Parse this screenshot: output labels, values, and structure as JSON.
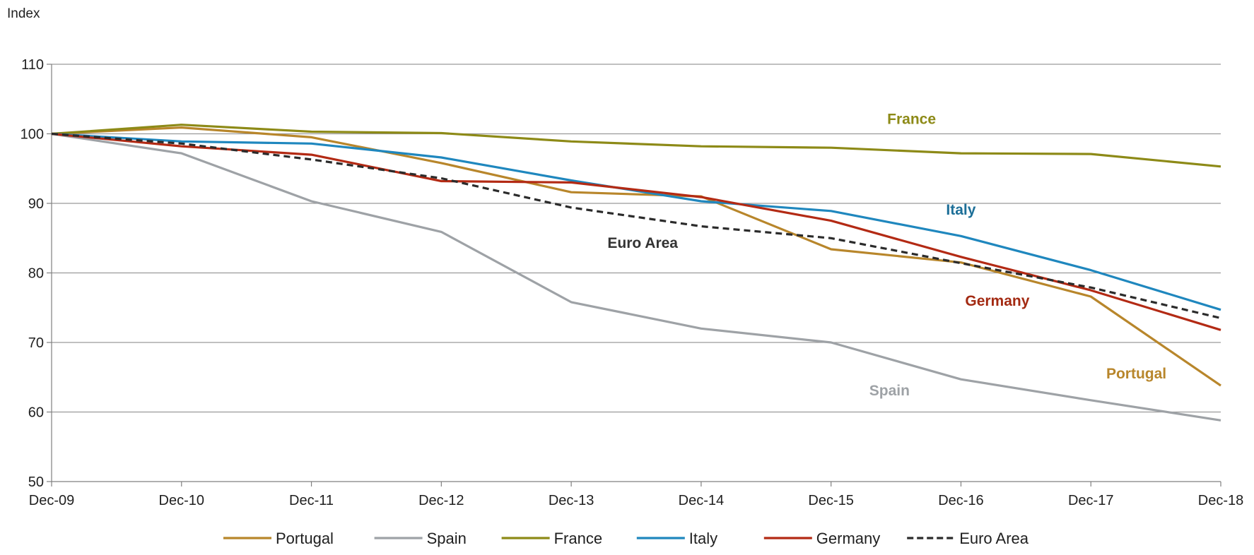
{
  "chart_data": {
    "type": "line",
    "title": "",
    "xlabel": "",
    "ylabel": "",
    "unit_label": "Index",
    "x": [
      "Dec-09",
      "Dec-10",
      "Dec-11",
      "Dec-12",
      "Dec-13",
      "Dec-14",
      "Dec-15",
      "Dec-16",
      "Dec-17",
      "Dec-18"
    ],
    "ylim": [
      50,
      110
    ],
    "yticks": [
      "50",
      "60",
      "70",
      "80",
      "90",
      "100",
      "110"
    ],
    "grid": true,
    "legend_position": "bottom",
    "series": [
      {
        "name": "Portugal",
        "color": "#b8862b",
        "dash": "solid",
        "values": [
          100,
          100.9,
          99.5,
          95.8,
          91.6,
          91.0,
          83.4,
          81.5,
          76.6,
          63.8
        ]
      },
      {
        "name": "Spain",
        "color": "#9ea2a6",
        "dash": "solid",
        "values": [
          100,
          97.2,
          90.3,
          85.9,
          75.8,
          72.0,
          70.0,
          64.7,
          61.7,
          58.8
        ]
      },
      {
        "name": "France",
        "color": "#8d8a17",
        "dash": "solid",
        "values": [
          100,
          101.3,
          100.3,
          100.1,
          98.9,
          98.2,
          98.0,
          97.2,
          97.1,
          95.3
        ]
      },
      {
        "name": "Italy",
        "color": "#1f87be",
        "dash": "solid",
        "values": [
          100,
          98.9,
          98.6,
          96.6,
          93.3,
          90.3,
          88.9,
          85.3,
          80.4,
          74.7
        ]
      },
      {
        "name": "Germany",
        "color": "#b32a14",
        "dash": "solid",
        "values": [
          100,
          98.2,
          97.0,
          93.2,
          93.0,
          90.9,
          87.5,
          82.3,
          77.5,
          71.8
        ]
      },
      {
        "name": "Euro Area",
        "color": "#2b2b2b",
        "dash": "dashed",
        "values": [
          100,
          98.6,
          96.3,
          93.6,
          89.4,
          86.7,
          85.0,
          81.4,
          77.9,
          73.5
        ]
      }
    ],
    "annotations": [
      {
        "text": "France",
        "color": "#8d8a17",
        "x": "Dec-15",
        "offset": 0.62,
        "y": 101.4
      },
      {
        "text": "Italy",
        "color": "#1d6f98",
        "x": "Dec-16",
        "offset": 0.0,
        "y": 88.4
      },
      {
        "text": "Euro Area",
        "color": "#333333",
        "x": "Dec-13",
        "offset": 0.55,
        "y": 83.6
      },
      {
        "text": "Germany",
        "color": "#a32a12",
        "x": "Dec-16",
        "offset": 0.28,
        "y": 75.3
      },
      {
        "text": "Portugal",
        "color": "#b8862b",
        "x": "Dec-17",
        "offset": 0.35,
        "y": 64.8
      },
      {
        "text": "Spain",
        "color": "#9ea2a6",
        "x": "Dec-15",
        "offset": 0.45,
        "y": 62.4
      }
    ]
  }
}
